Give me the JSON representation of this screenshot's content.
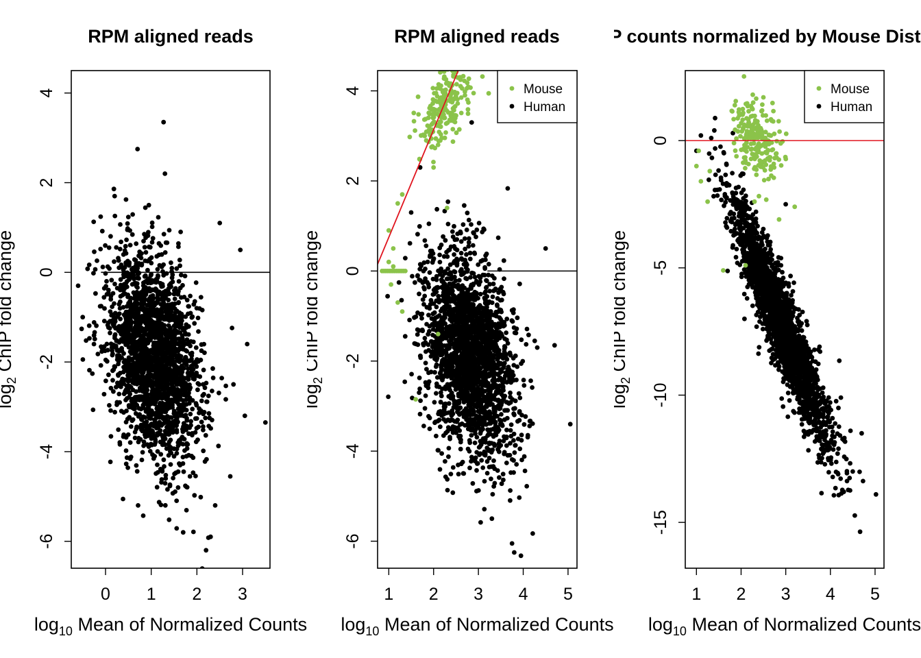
{
  "colors": {
    "mouse": "#8BC34A",
    "human": "#000000",
    "fit_line": "#E0141E",
    "ref_line": "#000000"
  },
  "chart_data": [
    {
      "type": "scatter",
      "title": "RPM aligned reads",
      "xlabel": "log10 Mean of Normalized Counts",
      "ylabel": "log2 ChIP fold change",
      "xlim": [
        -0.75,
        3.6
      ],
      "ylim": [
        -6.6,
        4.5
      ],
      "xticks": [
        0,
        1,
        2,
        3
      ],
      "yticks": [
        4,
        2,
        0,
        -2,
        -4,
        -6
      ],
      "xtick_labels": [
        "0",
        "1",
        "2",
        "3"
      ],
      "ytick_labels": [
        "4",
        "2",
        "0",
        "-2",
        "-4",
        "-6"
      ],
      "legend": null,
      "hline": {
        "y": 0,
        "x_from": -0.1,
        "color": "ref"
      },
      "series": [
        {
          "key": "human",
          "cloud": {
            "cx": 1.05,
            "cy": -1.9,
            "sx": 0.5,
            "sy": 1.15,
            "rho": -0.3,
            "n": 2200
          },
          "points": [
            [
              1.27,
              3.35
            ],
            [
              0.7,
              2.75
            ],
            [
              1.3,
              2.2
            ],
            [
              2.5,
              1.1
            ],
            [
              2.95,
              0.5
            ],
            [
              3.5,
              -3.35
            ],
            [
              3.1,
              -1.6
            ],
            [
              3.05,
              -3.2
            ],
            [
              2.2,
              -6.2
            ],
            [
              2.3,
              -5.9
            ],
            [
              1.7,
              -5.8
            ],
            [
              -0.6,
              -0.3
            ],
            [
              -0.5,
              -1.0
            ],
            [
              0.2,
              1.7
            ],
            [
              2.4,
              -5.2
            ],
            [
              2.8,
              -2.5
            ]
          ]
        }
      ]
    },
    {
      "type": "scatter",
      "title": "RPM aligned reads",
      "xlabel": "log10 Mean of Normalized Counts",
      "ylabel": "log2 ChIP fold change",
      "xlim": [
        0.75,
        5.2
      ],
      "ylim": [
        -6.6,
        4.45
      ],
      "xticks": [
        1,
        2,
        3,
        4,
        5
      ],
      "yticks": [
        4,
        2,
        0,
        -2,
        -4,
        -6
      ],
      "xtick_labels": [
        "1",
        "2",
        "3",
        "4",
        "5"
      ],
      "ytick_labels": [
        "4",
        "2",
        "0",
        "-2",
        "-4",
        "-6"
      ],
      "legend": {
        "position": "top-right",
        "entries": [
          {
            "label": "Mouse",
            "key": "mouse"
          },
          {
            "label": "Human",
            "key": "human"
          }
        ]
      },
      "hline": {
        "y": 0,
        "x_from": 3.2,
        "color": "ref"
      },
      "fit_line": {
        "x": [
          0.75,
          2.55
        ],
        "y": [
          0.15,
          4.45
        ]
      },
      "series": [
        {
          "key": "human",
          "cloud": {
            "cx": 2.8,
            "cy": -1.9,
            "sx": 0.5,
            "sy": 1.15,
            "rho": -0.3,
            "n": 2200
          },
          "points": [
            [
              2.85,
              3.3
            ],
            [
              5.05,
              -3.4
            ],
            [
              4.7,
              -1.65
            ],
            [
              4.5,
              0.5
            ],
            [
              3.75,
              -6.05
            ],
            [
              3.8,
              -6.25
            ],
            [
              3.3,
              -5.5
            ],
            [
              1.5,
              1.3
            ],
            [
              1.7,
              2.3
            ]
          ]
        },
        {
          "key": "mouse",
          "cloud": {
            "cx": 2.3,
            "cy": 3.7,
            "sx": 0.28,
            "sy": 0.45,
            "rho": 0.5,
            "n": 220
          },
          "points": [
            [
              1.0,
              0.9
            ],
            [
              1.1,
              0.5
            ],
            [
              1.05,
              -0.3
            ],
            [
              1.2,
              -0.7
            ],
            [
              1.3,
              -0.9
            ],
            [
              1.0,
              0.2
            ],
            [
              1.1,
              0.1
            ],
            [
              1.6,
              -2.85
            ],
            [
              2.1,
              -1.4
            ],
            [
              2.3,
              1.4
            ],
            [
              1.2,
              1.5
            ],
            [
              1.3,
              1.7
            ],
            [
              2.0,
              2.3
            ],
            [
              2.7,
              3.9
            ],
            [
              2.1,
              2.8
            ],
            [
              1.8,
              3.0
            ]
          ]
        }
      ]
    },
    {
      "type": "scatter",
      "title": "ChIP counts normalized by Mouse Distribution",
      "xlabel": "log10 Mean of Normalized Counts",
      "ylabel": "log2 ChIP fold change",
      "xlim": [
        0.75,
        5.2
      ],
      "ylim": [
        -16.8,
        2.75
      ],
      "xticks": [
        1,
        2,
        3,
        4,
        5
      ],
      "yticks": [
        0,
        -5,
        -10,
        -15
      ],
      "xtick_labels": [
        "1",
        "2",
        "3",
        "4",
        "5"
      ],
      "ytick_labels": [
        "0",
        "-5",
        "-10",
        "-15"
      ],
      "legend": {
        "position": "top-right",
        "entries": [
          {
            "label": "Mouse",
            "key": "mouse"
          },
          {
            "label": "Human",
            "key": "human"
          }
        ]
      },
      "hline": {
        "y": 0,
        "x_from": 0.75,
        "color": "fit_line"
      },
      "series": [
        {
          "key": "human",
          "cloud": {
            "cx": 2.9,
            "cy": -7.2,
            "sx": 0.55,
            "sy": 2.4,
            "rho": 0.93,
            "n": 2400,
            "slope_sign": -1
          },
          "points": [
            [
              5.02,
              -13.9
            ],
            [
              4.5,
              -13.0
            ],
            [
              4.3,
              -13.8
            ],
            [
              3.8,
              -13.85
            ],
            [
              4.45,
              -11.4
            ],
            [
              4.7,
              -11.5
            ],
            [
              4.2,
              -8.65
            ],
            [
              3.0,
              -2.5
            ],
            [
              1.1,
              0.2
            ],
            [
              1.4,
              0.4
            ],
            [
              1.0,
              -0.4
            ]
          ]
        },
        {
          "key": "mouse",
          "cloud": {
            "cx": 2.35,
            "cy": 0.0,
            "sx": 0.28,
            "sy": 0.8,
            "rho": -0.4,
            "n": 220
          },
          "points": [
            [
              2.1,
              -4.9
            ],
            [
              2.85,
              -3.1
            ],
            [
              1.6,
              -5.1
            ],
            [
              1.25,
              -2.4
            ],
            [
              1.0,
              -1.0
            ],
            [
              1.05,
              -0.4
            ],
            [
              1.1,
              -1.6
            ],
            [
              2.3,
              -2.4
            ],
            [
              2.5,
              1.7
            ],
            [
              3.2,
              -2.6
            ],
            [
              1.3,
              -1.2
            ]
          ]
        }
      ]
    }
  ]
}
